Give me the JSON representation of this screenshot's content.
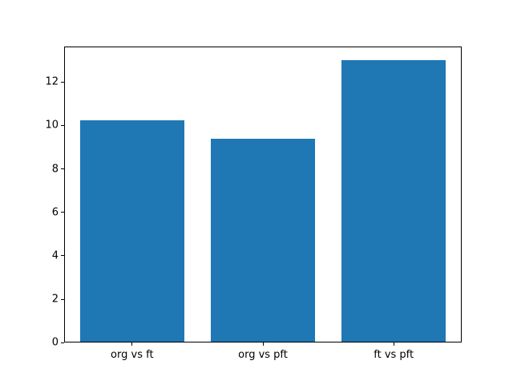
{
  "figure": {
    "background": "#ffffff"
  },
  "chart_data": {
    "type": "bar",
    "categories": [
      "org vs ft",
      "org vs pft",
      "ft vs pft"
    ],
    "values": [
      10.25,
      9.38,
      13.0
    ],
    "title": "",
    "xlabel": "",
    "ylabel": "",
    "yticks": [
      0,
      2,
      4,
      6,
      8,
      10,
      12
    ],
    "ylim": [
      0,
      13.65
    ],
    "xlim": [
      -0.52,
      2.52
    ],
    "bar_width": 0.8,
    "bar_color": "#1f77b4",
    "axis_color": "#000000",
    "grid": false
  }
}
